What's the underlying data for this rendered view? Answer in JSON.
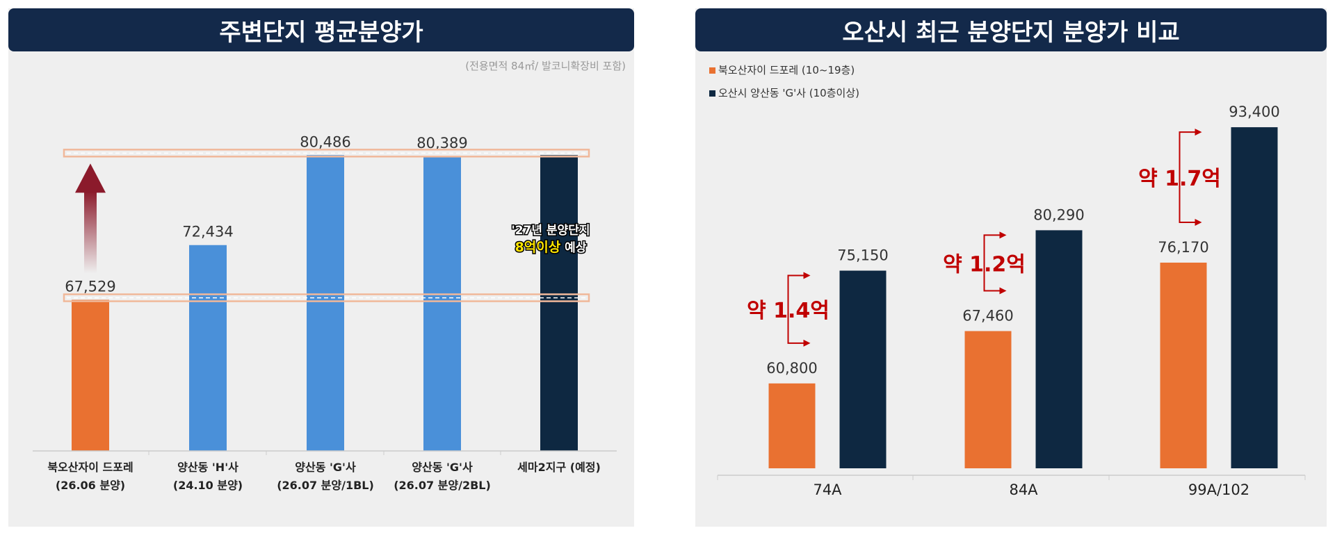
{
  "left_panel": {
    "title": "주변단지 평균분양가",
    "note": "(전용면적 84㎡/ 발코니확장비 포함)",
    "annotation_line1": "'27년 분양단지",
    "annotation_highlight": "8억이상",
    "annotation_suffix": " 예상"
  },
  "right_panel": {
    "title": "오산시 최근 분양단지 분양가 비교"
  },
  "colors": {
    "orange": "#e97131",
    "blue": "#4a90d9",
    "navy": "#0e2841",
    "red_text": "#c00000",
    "dark_red_arrow": "#8b1a2b",
    "band": "#f0b89a",
    "highlight_yellow": "#ffe600"
  },
  "chart_data": [
    {
      "type": "bar",
      "title": "주변단지 평균분양가",
      "categories": [
        [
          "북오산자이 드포레",
          "(26.06 분양)"
        ],
        [
          "양산동 'H'사",
          "(24.10 분양)"
        ],
        [
          "양산동 'G'사",
          "(26.07 분양/1BL)"
        ],
        [
          "양산동 'G'사",
          "(26.07 분양/2BL)"
        ],
        [
          "세마2지구 (예정)"
        ]
      ],
      "values": [
        67529,
        72434,
        80486,
        80389,
        80486
      ],
      "value_labels": [
        "67,529",
        "72,434",
        "80,486",
        "80,389",
        ""
      ],
      "bar_colors": [
        "orange",
        "blue",
        "blue",
        "blue",
        "navy"
      ],
      "reference_lines": [
        67529,
        80486
      ],
      "ylim": [
        54000,
        82000
      ],
      "grid": false
    },
    {
      "type": "bar",
      "title": "오산시 최근 분양단지 분양가 비교",
      "categories": [
        "74A",
        "84A",
        "99A/102"
      ],
      "series": [
        {
          "name": "북오산자이 드포레 (10~19층)",
          "values": [
            60800,
            67460,
            76170
          ],
          "labels": [
            "60,800",
            "67,460",
            "76,170"
          ],
          "color": "orange"
        },
        {
          "name": "오산시 양산동 'G'사 (10층이상)",
          "values": [
            75150,
            80290,
            93400
          ],
          "labels": [
            "75,150",
            "80,290",
            "93,400"
          ],
          "color": "navy"
        }
      ],
      "difference_labels": [
        "약 1.4억",
        "약 1.2억",
        "약 1.7억"
      ],
      "legend": "top-left",
      "ylim": [
        50000,
        95000
      ],
      "grid": false
    }
  ]
}
